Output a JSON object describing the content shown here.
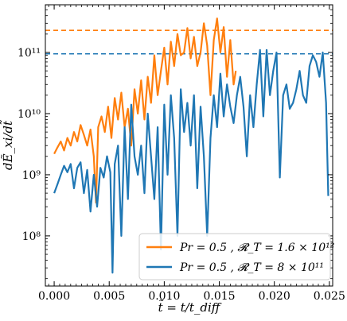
{
  "chart_data": {
    "type": "line",
    "xlabel": "t̃ = t/t_diff",
    "ylabel": "dẼ_xi/dt̃",
    "xlim": [
      -0.0008,
      0.0253
    ],
    "ylim_log10": [
      7.18,
      11.78
    ],
    "y_scale": "log",
    "grid": false,
    "legend_position": "bottom-right",
    "x_ticks": [
      0.0,
      0.005,
      0.01,
      0.015,
      0.02,
      0.025
    ],
    "x_tick_labels": [
      "0.000",
      "0.005",
      "0.010",
      "0.015",
      "0.020",
      "0.025"
    ],
    "y_ticks": [
      100000000.0,
      1000000000.0,
      10000000000.0,
      100000000000.0
    ],
    "y_tick_labels": [
      "10⁸",
      "10⁹",
      "10¹⁰",
      "10¹¹"
    ],
    "reference_lines": [
      {
        "series": "orange",
        "y": 230000000000.0,
        "style": "dashed"
      },
      {
        "series": "blue",
        "y": 95000000000.0,
        "style": "dashed"
      }
    ],
    "series": [
      {
        "name": "Pr = 0.5 , 𝓡_T = 1.6 × 10¹²",
        "color": "#ff7f0e",
        "x": [
          0.0,
          0.0003,
          0.0006,
          0.0009,
          0.0012,
          0.0015,
          0.0018,
          0.0021,
          0.0024,
          0.0027,
          0.003,
          0.0033,
          0.0036,
          0.0038,
          0.004,
          0.0043,
          0.0046,
          0.0049,
          0.0052,
          0.0055,
          0.0058,
          0.0061,
          0.0064,
          0.0067,
          0.007,
          0.0073,
          0.0076,
          0.0079,
          0.0082,
          0.0085,
          0.0088,
          0.0091,
          0.0094,
          0.0097,
          0.01,
          0.0103,
          0.0106,
          0.0109,
          0.0112,
          0.0115,
          0.0118,
          0.0121,
          0.0124,
          0.0127,
          0.013,
          0.0133,
          0.0136,
          0.0139,
          0.0142,
          0.0145,
          0.0148,
          0.0151,
          0.0154,
          0.0157,
          0.016,
          0.0163,
          0.0165
        ],
        "y": [
          2200000000.0,
          2800000000.0,
          3500000000.0,
          2500000000.0,
          4000000000.0,
          3000000000.0,
          5000000000.0,
          3500000000.0,
          6500000000.0,
          4500000000.0,
          3000000000.0,
          5500000000.0,
          2000000000.0,
          350000000.0,
          6000000000.0,
          9000000000.0,
          5000000000.0,
          13000000000.0,
          4000000000.0,
          18000000000.0,
          8000000000.0,
          22000000000.0,
          6000000000.0,
          12000000000.0,
          3000000000.0,
          25000000000.0,
          10000000000.0,
          35000000000.0,
          8000000000.0,
          40000000000.0,
          15000000000.0,
          90000000000.0,
          20000000000.0,
          50000000000.0,
          120000000000.0,
          30000000000.0,
          150000000000.0,
          60000000000.0,
          200000000000.0,
          90000000000.0,
          100000000000.0,
          250000000000.0,
          80000000000.0,
          180000000000.0,
          60000000000.0,
          100000000000.0,
          300000000000.0,
          130000000000.0,
          20000000000.0,
          160000000000.0,
          360000000000.0,
          100000000000.0,
          260000000000.0,
          40000000000.0,
          160000000000.0,
          30000000000.0,
          50000000000.0
        ]
      },
      {
        "name": "Pr = 0.5 , 𝓡_T = 8 × 10¹¹",
        "color": "#1f77b4",
        "x": [
          0.0,
          0.0003,
          0.0006,
          0.0009,
          0.0012,
          0.0015,
          0.0018,
          0.0021,
          0.0024,
          0.0027,
          0.003,
          0.0033,
          0.0036,
          0.0039,
          0.0042,
          0.0045,
          0.0048,
          0.0051,
          0.0053,
          0.0055,
          0.0058,
          0.0061,
          0.0064,
          0.0067,
          0.007,
          0.0073,
          0.0076,
          0.0079,
          0.0082,
          0.0085,
          0.0088,
          0.0091,
          0.0094,
          0.0097,
          0.01,
          0.0103,
          0.0106,
          0.0109,
          0.0112,
          0.0115,
          0.0118,
          0.0121,
          0.0124,
          0.0127,
          0.013,
          0.0133,
          0.0136,
          0.0139,
          0.0142,
          0.0145,
          0.0148,
          0.0151,
          0.0154,
          0.0157,
          0.016,
          0.0163,
          0.0166,
          0.0169,
          0.0172,
          0.0175,
          0.0178,
          0.0181,
          0.0184,
          0.0187,
          0.019,
          0.0193,
          0.0196,
          0.0199,
          0.0202,
          0.0205,
          0.0208,
          0.0211,
          0.0214,
          0.0217,
          0.022,
          0.0223,
          0.0226,
          0.0229,
          0.0232,
          0.0235,
          0.0238,
          0.0241,
          0.0244,
          0.0247,
          0.0249
        ],
        "y": [
          500000000.0,
          700000000.0,
          1000000000.0,
          1400000000.0,
          1100000000.0,
          1500000000.0,
          600000000.0,
          1300000000.0,
          1600000000.0,
          500000000.0,
          1200000000.0,
          250000000.0,
          1000000000.0,
          300000000.0,
          1300000000.0,
          900000000.0,
          2000000000.0,
          1100000000.0,
          25000000.0,
          1500000000.0,
          3000000000.0,
          100000000.0,
          6000000000.0,
          400000000.0,
          14000000000.0,
          2000000000.0,
          1000000000.0,
          3000000000.0,
          500000000.0,
          10000000000.0,
          2000000000.0,
          400000000.0,
          6000000000.0,
          60000000.0,
          14000000000.0,
          1000000000.0,
          20000000000.0,
          4000000000.0,
          100000000.0,
          25000000000.0,
          5000000000.0,
          15000000000.0,
          3000000000.0,
          20000000000.0,
          600000000.0,
          13000000000.0,
          2000000000.0,
          100000000.0,
          4000000000.0,
          20000000000.0,
          6000000000.0,
          45000000000.0,
          9000000000.0,
          30000000000.0,
          13000000000.0,
          7000000000.0,
          20000000000.0,
          40000000000.0,
          13000000000.0,
          2000000000.0,
          20000000000.0,
          6000000000.0,
          30000000000.0,
          110000000000.0,
          9000000000.0,
          110000000000.0,
          20000000000.0,
          50000000000.0,
          100000000000.0,
          900000000.0,
          20000000000.0,
          30000000000.0,
          12000000000.0,
          15000000000.0,
          25000000000.0,
          50000000000.0,
          20000000000.0,
          15000000000.0,
          60000000000.0,
          90000000000.0,
          70000000000.0,
          40000000000.0,
          100000000000.0,
          15000000000.0,
          450000000.0
        ]
      }
    ]
  }
}
